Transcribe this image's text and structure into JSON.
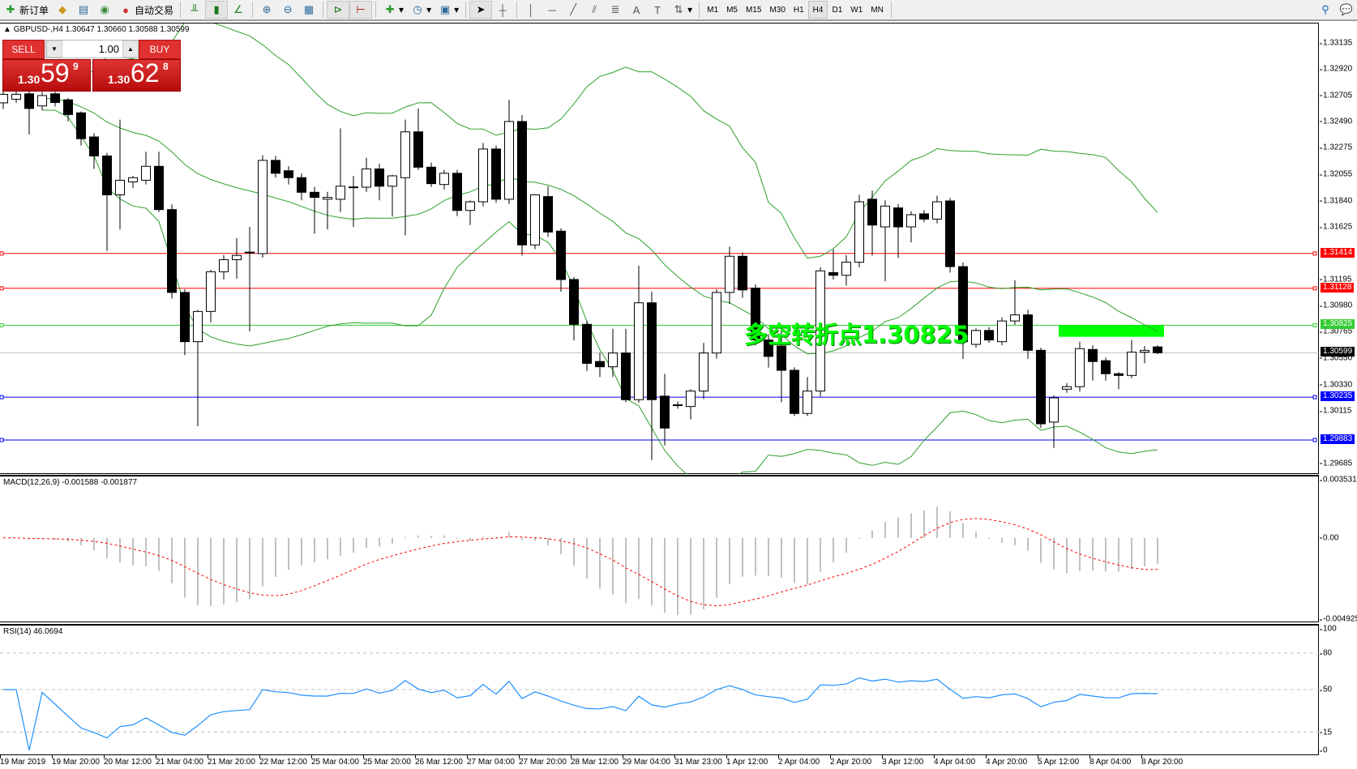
{
  "toolbar": {
    "new_order": "新订单",
    "auto_trading": "自动交易",
    "timeframes": [
      "M1",
      "M5",
      "M15",
      "M30",
      "H1",
      "H4",
      "D1",
      "W1",
      "MN"
    ],
    "active_timeframe": "H4",
    "icons": [
      "new-order-icon",
      "history-icon",
      "market-watch-icon",
      "signals-icon",
      "auto-trading-icon",
      "bar-chart-icon",
      "candlestick-icon",
      "line-chart-icon",
      "zoom-in-icon",
      "zoom-out-icon",
      "tile-windows-icon",
      "autoscroll-icon",
      "chart-shift-icon",
      "indicators-icon",
      "periods-icon",
      "templates-icon",
      "cursor-icon",
      "crosshair-icon",
      "vertical-line-icon",
      "horizontal-line-icon",
      "trendline-icon",
      "equidistant-channel-icon",
      "fibonacci-icon",
      "text-icon",
      "text-label-icon",
      "arrows-icon",
      "search-icon",
      "chat-icon"
    ]
  },
  "chart_header": {
    "symbol": "GBPUSD-,H4",
    "ohlc": "1.30647 1.30660 1.30588 1.30599"
  },
  "trade_panel": {
    "sell_label": "SELL",
    "buy_label": "BUY",
    "lot": "1.00",
    "sell_prefix": "1.30",
    "sell_big": "59",
    "sell_sup": "9",
    "buy_prefix": "1.30",
    "buy_big": "62",
    "buy_sup": "8"
  },
  "annotation": {
    "text": "多空转折点1.30825",
    "color": "#00ff00"
  },
  "colors": {
    "bull_fill": "#ffffff",
    "bear_fill": "#000000",
    "bands": "#2ca02c",
    "macd_hist": "#c0c0c0",
    "macd_signal": "#ff0000",
    "rsi": "#1e90ff"
  },
  "chart_data": [
    {
      "type": "candlestick",
      "title": "GBPUSD-,H4",
      "ylim": [
        1.29685,
        1.33135
      ],
      "y_ticks": [
        "1.33135",
        "1.32920",
        "1.32705",
        "1.32490",
        "1.32275",
        "1.32055",
        "1.31840",
        "1.31625",
        "1.31195",
        "1.30980",
        "1.30765",
        "1.30550",
        "1.30330",
        "1.30115",
        "1.29685"
      ],
      "x_ticks": [
        "19 Mar 2019",
        "19 Mar 20:00",
        "20 Mar 12:00",
        "21 Mar 04:00",
        "21 Mar 20:00",
        "22 Mar 12:00",
        "25 Mar 04:00",
        "25 Mar 20:00",
        "26 Mar 12:00",
        "27 Mar 04:00",
        "27 Mar 20:00",
        "28 Mar 12:00",
        "29 Mar 04:00",
        "31 Mar 23:00",
        "1 Apr 12:00",
        "2 Apr 04:00",
        "2 Apr 20:00",
        "3 Apr 12:00",
        "4 Apr 04:00",
        "4 Apr 20:00",
        "5 Apr 12:00",
        "8 Apr 04:00",
        "8 Apr 20:00"
      ],
      "indicator": "Bollinger Bands",
      "ohlc": [
        [
          1.3265,
          1.328,
          1.326,
          1.3272
        ],
        [
          1.3268,
          1.3278,
          1.3265,
          1.3272
        ],
        [
          1.32724,
          1.3275,
          1.32391,
          1.32604
        ],
        [
          1.32625,
          1.3274,
          1.3259,
          1.3271
        ],
        [
          1.32724,
          1.3274,
          1.3262,
          1.32653
        ],
        [
          1.32675,
          1.3269,
          1.32497,
          1.32554
        ],
        [
          1.32568,
          1.3258,
          1.323,
          1.32356
        ],
        [
          1.3237,
          1.324,
          1.32108,
          1.32214
        ],
        [
          1.32214,
          1.3224,
          1.31434,
          1.31895
        ],
        [
          1.31895,
          1.32512,
          1.31611,
          1.32015
        ],
        [
          1.32001,
          1.3205,
          1.3195,
          1.32036
        ],
        [
          1.32015,
          1.32249,
          1.3198,
          1.32129
        ],
        [
          1.32129,
          1.32249,
          1.31753,
          1.31774
        ],
        [
          1.31774,
          1.31817,
          1.31044,
          1.31094
        ],
        [
          1.31094,
          1.3112,
          1.3058,
          1.3069
        ],
        [
          1.3069,
          1.3095,
          1.29995,
          1.30938
        ],
        [
          1.30938,
          1.3128,
          1.3085,
          1.31264
        ],
        [
          1.31264,
          1.314,
          1.312,
          1.31363
        ],
        [
          1.31363,
          1.3154,
          1.31207,
          1.31398
        ],
        [
          1.3142,
          1.31632,
          1.30775,
          1.31425
        ],
        [
          1.31413,
          1.3222,
          1.3138,
          1.32178
        ],
        [
          1.32178,
          1.32214,
          1.32036,
          1.32072
        ],
        [
          1.32093,
          1.3213,
          1.3198,
          1.32036
        ],
        [
          1.32036,
          1.3207,
          1.3185,
          1.31916
        ],
        [
          1.31916,
          1.3196,
          1.31576,
          1.31874
        ],
        [
          1.31859,
          1.3192,
          1.31611,
          1.31874
        ],
        [
          1.31859,
          1.32441,
          1.31753,
          1.31966
        ],
        [
          1.31955,
          1.3205,
          1.31632,
          1.3196
        ],
        [
          1.31958,
          1.322,
          1.3192,
          1.32108
        ],
        [
          1.32108,
          1.3215,
          1.3185,
          1.31966
        ],
        [
          1.31966,
          1.3206,
          1.31717,
          1.32051
        ],
        [
          1.32036,
          1.32512,
          1.31562,
          1.32412
        ],
        [
          1.32412,
          1.32604,
          1.321,
          1.32122
        ],
        [
          1.32122,
          1.3216,
          1.3196,
          1.31987
        ],
        [
          1.3198,
          1.321,
          1.3194,
          1.32072
        ],
        [
          1.32072,
          1.321,
          1.3172,
          1.31767
        ],
        [
          1.31767,
          1.3185,
          1.31647,
          1.31838
        ],
        [
          1.31838,
          1.3232,
          1.318,
          1.32271
        ],
        [
          1.32271,
          1.323,
          1.3183,
          1.31859
        ],
        [
          1.31859,
          1.32675,
          1.3182,
          1.32497
        ],
        [
          1.32497,
          1.3255,
          1.31398,
          1.31484
        ],
        [
          1.31484,
          1.319,
          1.3145,
          1.31895
        ],
        [
          1.31881,
          1.31966,
          1.3155,
          1.3159
        ],
        [
          1.31597,
          1.3162,
          1.311,
          1.312
        ],
        [
          1.312,
          1.3122,
          1.307,
          1.30832
        ],
        [
          1.30832,
          1.3086,
          1.3045,
          1.30512
        ],
        [
          1.30527,
          1.306,
          1.304,
          1.30484
        ],
        [
          1.30484,
          1.30796,
          1.304,
          1.30597
        ],
        [
          1.30597,
          1.30796,
          1.30193,
          1.30214
        ],
        [
          1.30214,
          1.31313,
          1.3019,
          1.31009
        ],
        [
          1.31009,
          1.311,
          1.29718,
          1.30214
        ],
        [
          1.30243,
          1.30427,
          1.29839,
          1.29981
        ],
        [
          1.3017,
          1.302,
          1.3014,
          1.30172
        ],
        [
          1.30158,
          1.303,
          1.30052,
          1.30285
        ],
        [
          1.30285,
          1.3068,
          1.3022,
          1.30597
        ],
        [
          1.30597,
          1.3112,
          1.3055,
          1.31094
        ],
        [
          1.31094,
          1.3147,
          1.31,
          1.31391
        ],
        [
          1.31391,
          1.3142,
          1.3105,
          1.31115
        ],
        [
          1.3113,
          1.3116,
          1.3066,
          1.30704
        ],
        [
          1.30704,
          1.3075,
          1.30477,
          1.30569
        ],
        [
          1.30654,
          1.308,
          1.30193,
          1.30455
        ],
        [
          1.30455,
          1.3048,
          1.3008,
          1.30101
        ],
        [
          1.30101,
          1.304,
          1.3008,
          1.30285
        ],
        [
          1.30285,
          1.313,
          1.3024,
          1.31271
        ],
        [
          1.31257,
          1.31448,
          1.312,
          1.31235
        ],
        [
          1.31235,
          1.314,
          1.3115,
          1.31342
        ],
        [
          1.31342,
          1.31895,
          1.313,
          1.31838
        ],
        [
          1.31859,
          1.3193,
          1.31398,
          1.31647
        ],
        [
          1.31632,
          1.3185,
          1.31186,
          1.31803
        ],
        [
          1.31788,
          1.3182,
          1.31377,
          1.31632
        ],
        [
          1.31632,
          1.3176,
          1.31505,
          1.31732
        ],
        [
          1.31739,
          1.3177,
          1.3167,
          1.31696
        ],
        [
          1.31696,
          1.31888,
          1.3166,
          1.31838
        ],
        [
          1.31845,
          1.3187,
          1.31257,
          1.31306
        ],
        [
          1.31306,
          1.3134,
          1.30548,
          1.3069
        ],
        [
          1.30668,
          1.308,
          1.3064,
          1.30782
        ],
        [
          1.30782,
          1.3081,
          1.3068,
          1.30704
        ],
        [
          1.3069,
          1.3089,
          1.3066,
          1.3086
        ],
        [
          1.3086,
          1.31193,
          1.3083,
          1.3091
        ],
        [
          1.3091,
          1.30952,
          1.3055,
          1.30619
        ],
        [
          1.30619,
          1.3064,
          1.29981,
          1.30016
        ],
        [
          1.3003,
          1.3025,
          1.29817,
          1.30229
        ],
        [
          1.303,
          1.3035,
          1.3027,
          1.30321
        ],
        [
          1.30321,
          1.3069,
          1.3028,
          1.30633
        ],
        [
          1.30626,
          1.3066,
          1.3037,
          1.30527
        ],
        [
          1.30534,
          1.3056,
          1.3037,
          1.30427
        ],
        [
          1.30427,
          1.3044,
          1.303,
          1.30413
        ],
        [
          1.30413,
          1.30704,
          1.3039,
          1.30604
        ],
        [
          1.30604,
          1.30654,
          1.30512,
          1.30619
        ],
        [
          1.30647,
          1.3066,
          1.30588,
          1.30599
        ]
      ],
      "hlines": [
        {
          "price": "1.31414",
          "color": "#ff0000"
        },
        {
          "price": "1.31128",
          "color": "#ff0000"
        },
        {
          "price": "1.30825",
          "color": "#33cc33"
        },
        {
          "price": "1.30235",
          "color": "#0000ff"
        },
        {
          "price": "1.29883",
          "color": "#0000ff"
        }
      ],
      "bid_line": {
        "price": "1.30599",
        "color": "#000000"
      },
      "zone": {
        "from_bar": 82,
        "to_bar": 89,
        "top": 1.30825,
        "bottom": 1.3073,
        "color": "#00ff00"
      }
    },
    {
      "type": "bar+line",
      "title": "MACD(12,26,9) -0.001588 -0.001877",
      "ylim": [
        -0.004925,
        0.003531
      ],
      "y_ticks": [
        "0.003531",
        "0.00",
        "-0.004925"
      ]
    },
    {
      "type": "line",
      "title": "RSI(14) 46.0694",
      "ylim": [
        0,
        100
      ],
      "y_ticks": [
        "100",
        "80",
        "50",
        "15",
        "0"
      ],
      "levels": [
        80,
        50,
        15
      ]
    }
  ]
}
